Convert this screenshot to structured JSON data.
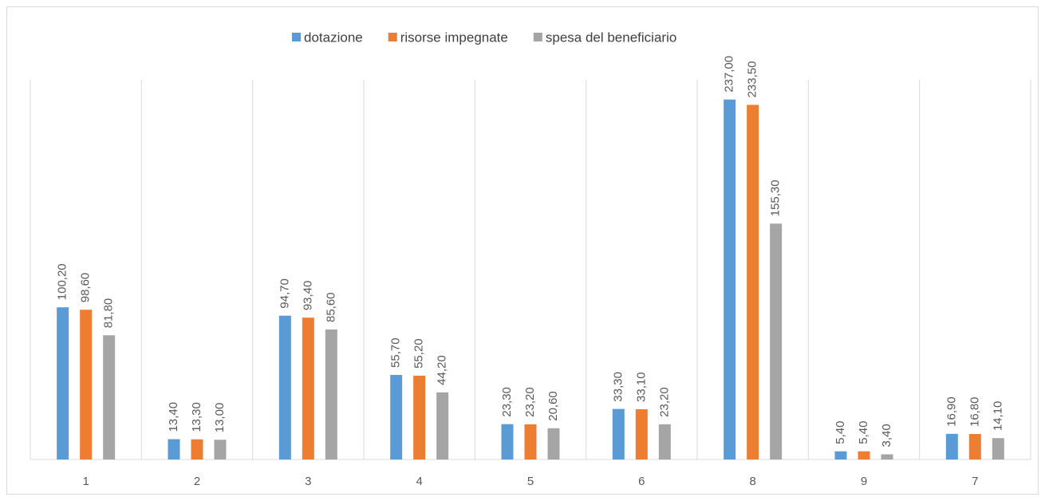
{
  "chart_data": {
    "type": "bar",
    "categories": [
      "1",
      "2",
      "3",
      "4",
      "5",
      "6",
      "8",
      "9",
      "7"
    ],
    "series": [
      {
        "name": "dotazione",
        "color": "#5b9bd5",
        "values": [
          100.2,
          13.4,
          94.7,
          55.7,
          23.3,
          33.3,
          237.0,
          5.4,
          16.9
        ],
        "value_labels": [
          "100,20",
          "13,40",
          "94,70",
          "55,70",
          "23,30",
          "33,30",
          "237,00",
          "5,40",
          "16,90"
        ]
      },
      {
        "name": "risorse impegnate",
        "color": "#ed7d31",
        "values": [
          98.6,
          13.3,
          93.4,
          55.2,
          23.2,
          33.1,
          233.5,
          5.4,
          16.8
        ],
        "value_labels": [
          "98,60",
          "13,30",
          "93,40",
          "55,20",
          "23,20",
          "33,10",
          "233,50",
          "5,40",
          "16,80"
        ]
      },
      {
        "name": "spesa del beneficiario",
        "color": "#a5a5a5",
        "values": [
          81.8,
          13.0,
          85.6,
          44.2,
          20.6,
          23.2,
          155.3,
          3.4,
          14.1
        ],
        "value_labels": [
          "81,80",
          "13,00",
          "85,60",
          "44,20",
          "20,60",
          "23,20",
          "155,30",
          "3,40",
          "14,10"
        ]
      }
    ],
    "ylim": [
      0,
      250
    ],
    "legend": "top"
  }
}
